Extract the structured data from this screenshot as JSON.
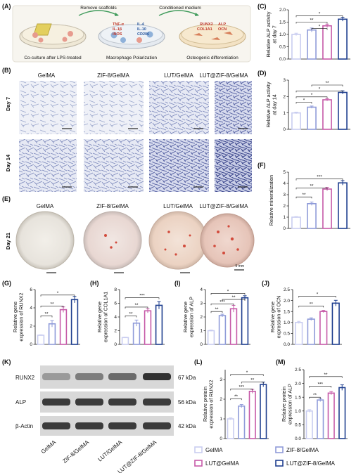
{
  "panel_labels": {
    "A": "(A)",
    "B": "(B)",
    "C": "(C)",
    "D": "(D)",
    "E": "(E)",
    "F": "(F)",
    "G": "(G)",
    "H": "(H)",
    "I": "(I)",
    "J": "(J)",
    "K": "(K)",
    "L": "(L)",
    "M": "(M)"
  },
  "schematic": {
    "arrow1": "Remove scaffolds",
    "arrow2": "Conditioned medium",
    "step1": "Co-culture after LPS-treated",
    "step2": "Macrophage Polarization",
    "step3": "Osteogenic differentiation",
    "markers_m1": [
      "TNF-α",
      "IL-1β",
      "iNOS"
    ],
    "markers_m2": [
      "IL-4",
      "IL-10",
      "CD206"
    ],
    "markers_osteo": [
      "RUNX2",
      "ALP",
      "COL1A1",
      "OCN"
    ]
  },
  "groups": [
    "GelMA",
    "ZIF-8/GelMA",
    "LUT/GelMA",
    "LUT@ZIF-8/GelMA"
  ],
  "row_labels": {
    "day7": "Day 7",
    "day14": "Day 14",
    "day21": "Day 21"
  },
  "scalebar_label": "5 mm",
  "blot": {
    "proteins": [
      "RUNX2",
      "ALP",
      "β-Actin"
    ],
    "kda": [
      "67 kDa",
      "56 kDa",
      "42 kDa"
    ],
    "lanes": [
      "GelMA",
      "ZIF-8/GelMA",
      "LUT/GelMA",
      "LUT@ZIF-8\n/GelMA"
    ],
    "band_intensity": {
      "RUNX2": [
        0.35,
        0.5,
        0.6,
        0.9
      ],
      "ALP": [
        0.85,
        0.85,
        0.85,
        0.85
      ],
      "β-Actin": [
        0.85,
        0.85,
        0.85,
        0.85
      ]
    }
  },
  "legend": {
    "items": [
      "GelMA",
      "ZIF-8/GelMA",
      "LUT@GelMA",
      "LUT@ZIF-8/GelMA"
    ],
    "colors": [
      "#c9cdf0",
      "#8f9bd9",
      "#c65aa8",
      "#1f3f8f"
    ]
  },
  "colors": {
    "bars": [
      "#c9cdf0",
      "#8f9bd9",
      "#c65aa8",
      "#1f3f8f"
    ],
    "bar_fill": "#ffffff"
  },
  "chart_data": [
    {
      "id": "C",
      "type": "bar",
      "categories": [
        "GelMA",
        "ZIF-8/GelMA",
        "LUT/GelMA",
        "LUT@ZIF-8/GelMA"
      ],
      "values": [
        1.0,
        1.18,
        1.35,
        1.62
      ],
      "errors": [
        0.05,
        0.08,
        0.07,
        0.08
      ],
      "ylabel": "Relative ALP activity\nat day 7",
      "ylim": [
        0,
        2.0
      ],
      "yticks": [
        0,
        0.5,
        1.0,
        1.5,
        2.0
      ],
      "sig": [
        {
          "a": 1,
          "b": 2,
          "label": "*",
          "level": 0.62
        },
        {
          "a": 0,
          "b": 2,
          "label": "**",
          "level": 0.75
        },
        {
          "a": 0,
          "b": 3,
          "label": "*",
          "level": 0.88
        }
      ]
    },
    {
      "id": "D",
      "type": "bar",
      "categories": [
        "GelMA",
        "ZIF-8/GelMA",
        "LUT/GelMA",
        "LUT@ZIF-8/GelMA"
      ],
      "values": [
        1.0,
        1.35,
        1.8,
        2.25
      ],
      "errors": [
        0.05,
        0.07,
        0.07,
        0.1
      ],
      "ylabel": "Relative ALP activity\nat day 14",
      "ylim": [
        0,
        3
      ],
      "yticks": [
        0,
        1,
        2,
        3
      ],
      "sig": [
        {
          "a": 0,
          "b": 1,
          "label": "*",
          "level": 0.55
        },
        {
          "a": 0,
          "b": 2,
          "label": "*",
          "level": 0.66
        },
        {
          "a": 0,
          "b": 3,
          "label": "*",
          "level": 0.78
        },
        {
          "a": 1,
          "b": 3,
          "label": "**",
          "level": 0.9
        }
      ]
    },
    {
      "id": "F",
      "type": "bar",
      "categories": [
        "GelMA",
        "ZIF-8/GelMA",
        "LUT/GelMA",
        "LUT@ZIF-8/GelMA"
      ],
      "values": [
        1.0,
        2.2,
        3.5,
        4.05
      ],
      "errors": [
        0.05,
        0.15,
        0.15,
        0.2
      ],
      "ylabel": "Relative mineralization",
      "ylim": [
        0,
        5
      ],
      "yticks": [
        0,
        1,
        2,
        3,
        4,
        5
      ],
      "sig": [
        {
          "a": 0,
          "b": 1,
          "label": "**",
          "level": 0.56
        },
        {
          "a": 0,
          "b": 2,
          "label": "**",
          "level": 0.72
        },
        {
          "a": 0,
          "b": 3,
          "label": "***",
          "level": 0.88
        }
      ]
    },
    {
      "id": "G",
      "type": "bar",
      "categories": [
        "GelMA",
        "ZIF-8/GelMA",
        "LUT/GelMA",
        "LUT@ZIF-8/GelMA"
      ],
      "values": [
        1.0,
        2.25,
        3.8,
        4.9
      ],
      "errors": [
        0.05,
        0.35,
        0.3,
        0.35
      ],
      "ylabel": "Relative gene\nexpression of RUNX2",
      "ylim": [
        0,
        6
      ],
      "yticks": [
        0,
        2,
        4,
        6
      ],
      "sig": [
        {
          "a": 0,
          "b": 1,
          "label": "**",
          "level": 0.52
        },
        {
          "a": 0,
          "b": 2,
          "label": "**",
          "level": 0.7
        },
        {
          "a": 0,
          "b": 3,
          "label": "*",
          "level": 0.9
        }
      ]
    },
    {
      "id": "H",
      "type": "bar",
      "categories": [
        "GelMA",
        "ZIF-8/GelMA",
        "LUT/GelMA",
        "LUT@ZIF-8/GelMA"
      ],
      "values": [
        1.0,
        3.1,
        4.9,
        5.7
      ],
      "errors": [
        0.05,
        0.45,
        0.3,
        0.55
      ],
      "ylabel": "Relative gene\nexpression of COL1A1",
      "ylim": [
        0,
        8
      ],
      "yticks": [
        0,
        2,
        4,
        6,
        8
      ],
      "sig": [
        {
          "a": 0,
          "b": 1,
          "label": "**",
          "level": 0.52
        },
        {
          "a": 0,
          "b": 2,
          "label": "**",
          "level": 0.68
        },
        {
          "a": 0,
          "b": 3,
          "label": "***",
          "level": 0.85
        }
      ]
    },
    {
      "id": "I",
      "type": "bar",
      "categories": [
        "GelMA",
        "ZIF-8/GelMA",
        "LUT/GelMA",
        "LUT@ZIF-8/GelMA"
      ],
      "values": [
        1.0,
        2.1,
        2.6,
        3.4
      ],
      "errors": [
        0.05,
        0.1,
        0.25,
        0.15
      ],
      "ylabel": "Relative gene\nexpression of ALP",
      "ylim": [
        0,
        4
      ],
      "yticks": [
        0,
        1,
        2,
        3,
        4
      ],
      "sig": [
        {
          "a": 0,
          "b": 1,
          "label": "**",
          "level": 0.6
        },
        {
          "a": 0,
          "b": 2,
          "label": "***",
          "level": 0.74
        },
        {
          "a": 1,
          "b": 3,
          "label": "**",
          "level": 0.82
        },
        {
          "a": 0,
          "b": 3,
          "label": "*",
          "level": 0.93
        }
      ]
    },
    {
      "id": "J",
      "type": "bar",
      "categories": [
        "GelMA",
        "ZIF-8/GelMA",
        "LUT/GelMA",
        "LUT@ZIF-8/GelMA"
      ],
      "values": [
        1.0,
        1.15,
        1.5,
        1.88
      ],
      "errors": [
        0.05,
        0.06,
        0.05,
        0.13
      ],
      "ylabel": "Relative gene\nexpression of OCN",
      "ylim": [
        0,
        2.5
      ],
      "yticks": [
        0,
        0.5,
        1.0,
        1.5,
        2.0,
        2.5
      ],
      "sig": [
        {
          "a": 0,
          "b": 2,
          "label": "**",
          "level": 0.7
        },
        {
          "a": 0,
          "b": 3,
          "label": "*",
          "level": 0.88
        }
      ]
    },
    {
      "id": "L",
      "type": "bar",
      "categories": [
        "GelMA",
        "ZIF-8/GelMA",
        "LUT/GelMA",
        "LUT@ZIF-8/GelMA"
      ],
      "values": [
        1.0,
        1.65,
        2.4,
        2.75
      ],
      "errors": [
        0.05,
        0.08,
        0.1,
        0.12
      ],
      "ylabel": "Relative protein\nexpression of RUNX2",
      "ylim": [
        0,
        3.5
      ],
      "yticks": [
        0,
        1,
        2,
        3
      ],
      "sig": [
        {
          "a": 0,
          "b": 1,
          "label": "**",
          "level": 0.58
        },
        {
          "a": 0,
          "b": 2,
          "label": "***",
          "level": 0.72
        },
        {
          "a": 1,
          "b": 3,
          "label": "**",
          "level": 0.82
        },
        {
          "a": 0,
          "b": 3,
          "label": "*",
          "level": 0.93
        }
      ]
    },
    {
      "id": "M",
      "type": "bar",
      "categories": [
        "GelMA",
        "ZIF-8/GelMA",
        "LUT/GelMA",
        "LUT@ZIF-8/GelMA"
      ],
      "values": [
        1.0,
        1.4,
        1.65,
        1.85
      ],
      "errors": [
        0.05,
        0.06,
        0.06,
        0.1
      ],
      "ylabel": "Relative protein\nexpression of ALP",
      "ylim": [
        0,
        2.5
      ],
      "yticks": [
        0,
        0.5,
        1.0,
        1.5,
        2.0,
        2.5
      ],
      "sig": [
        {
          "a": 0,
          "b": 1,
          "label": "**",
          "level": 0.6
        },
        {
          "a": 0,
          "b": 2,
          "label": "***",
          "level": 0.76
        },
        {
          "a": 0,
          "b": 3,
          "label": "**",
          "level": 0.9
        }
      ]
    }
  ]
}
